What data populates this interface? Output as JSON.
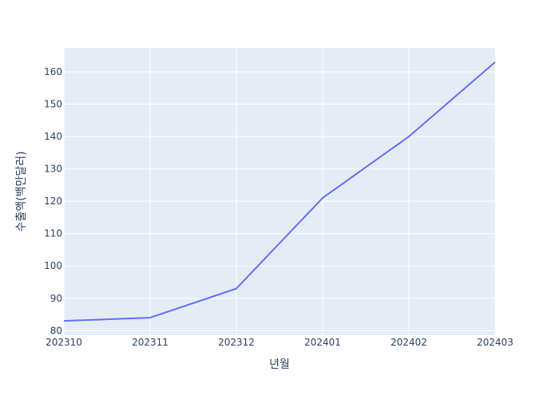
{
  "chart_data": {
    "type": "line",
    "xlabel": "년월",
    "ylabel": "수출액(백만달러)",
    "x": [
      "202310",
      "202311",
      "202312",
      "202401",
      "202402",
      "202403"
    ],
    "series": [
      {
        "values": [
          83,
          84,
          93,
          121,
          140,
          163
        ]
      }
    ],
    "xlim": [
      "202310",
      "202403"
    ],
    "ylim": [
      78.6,
      167.4
    ],
    "yticks": [
      80,
      90,
      100,
      110,
      120,
      130,
      140,
      150,
      160
    ],
    "grid": true,
    "colors": {
      "line": "#636efa",
      "plot_bg": "#e5ecf6",
      "grid": "#ffffff",
      "text": "#2a3f5f"
    }
  }
}
